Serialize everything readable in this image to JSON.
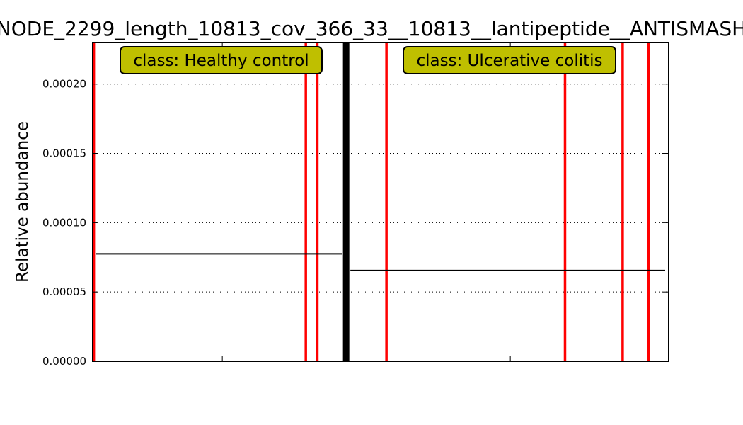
{
  "chart_data": {
    "type": "bar",
    "title": "NODE_2299_length_10813_cov_366_33__10813__lantipeptide__ANTISMASH",
    "xlabel": "",
    "ylabel": "Relative abundance",
    "ylim": [
      0,
      0.00023
    ],
    "yticks": [
      "0.00000",
      "0.00005",
      "0.00010",
      "0.00015",
      "0.00020"
    ],
    "grid": true,
    "classes": [
      {
        "label": "class: Healthy control",
        "sample_range": [
          0,
          44
        ],
        "mean": 7.75e-05,
        "nonzero_samples": [
          {
            "x": 0.2,
            "value": 0.23
          },
          {
            "x": 37.0,
            "value": 0.23
          },
          {
            "x": 39.0,
            "value": 0.23
          }
        ]
      },
      {
        "label": "class: Ulcerative colitis",
        "sample_range": [
          44,
          100
        ],
        "mean": 6.55e-05,
        "nonzero_samples": [
          {
            "x": 51.0,
            "value": 0.23
          },
          {
            "x": 82.0,
            "value": 0.23
          },
          {
            "x": 92.0,
            "value": 0.23
          },
          {
            "x": 96.5,
            "value": 0.23
          }
        ]
      }
    ],
    "separator_x": 44,
    "bar_color": "#ff0000",
    "label_box_color": "#bfbf00"
  }
}
